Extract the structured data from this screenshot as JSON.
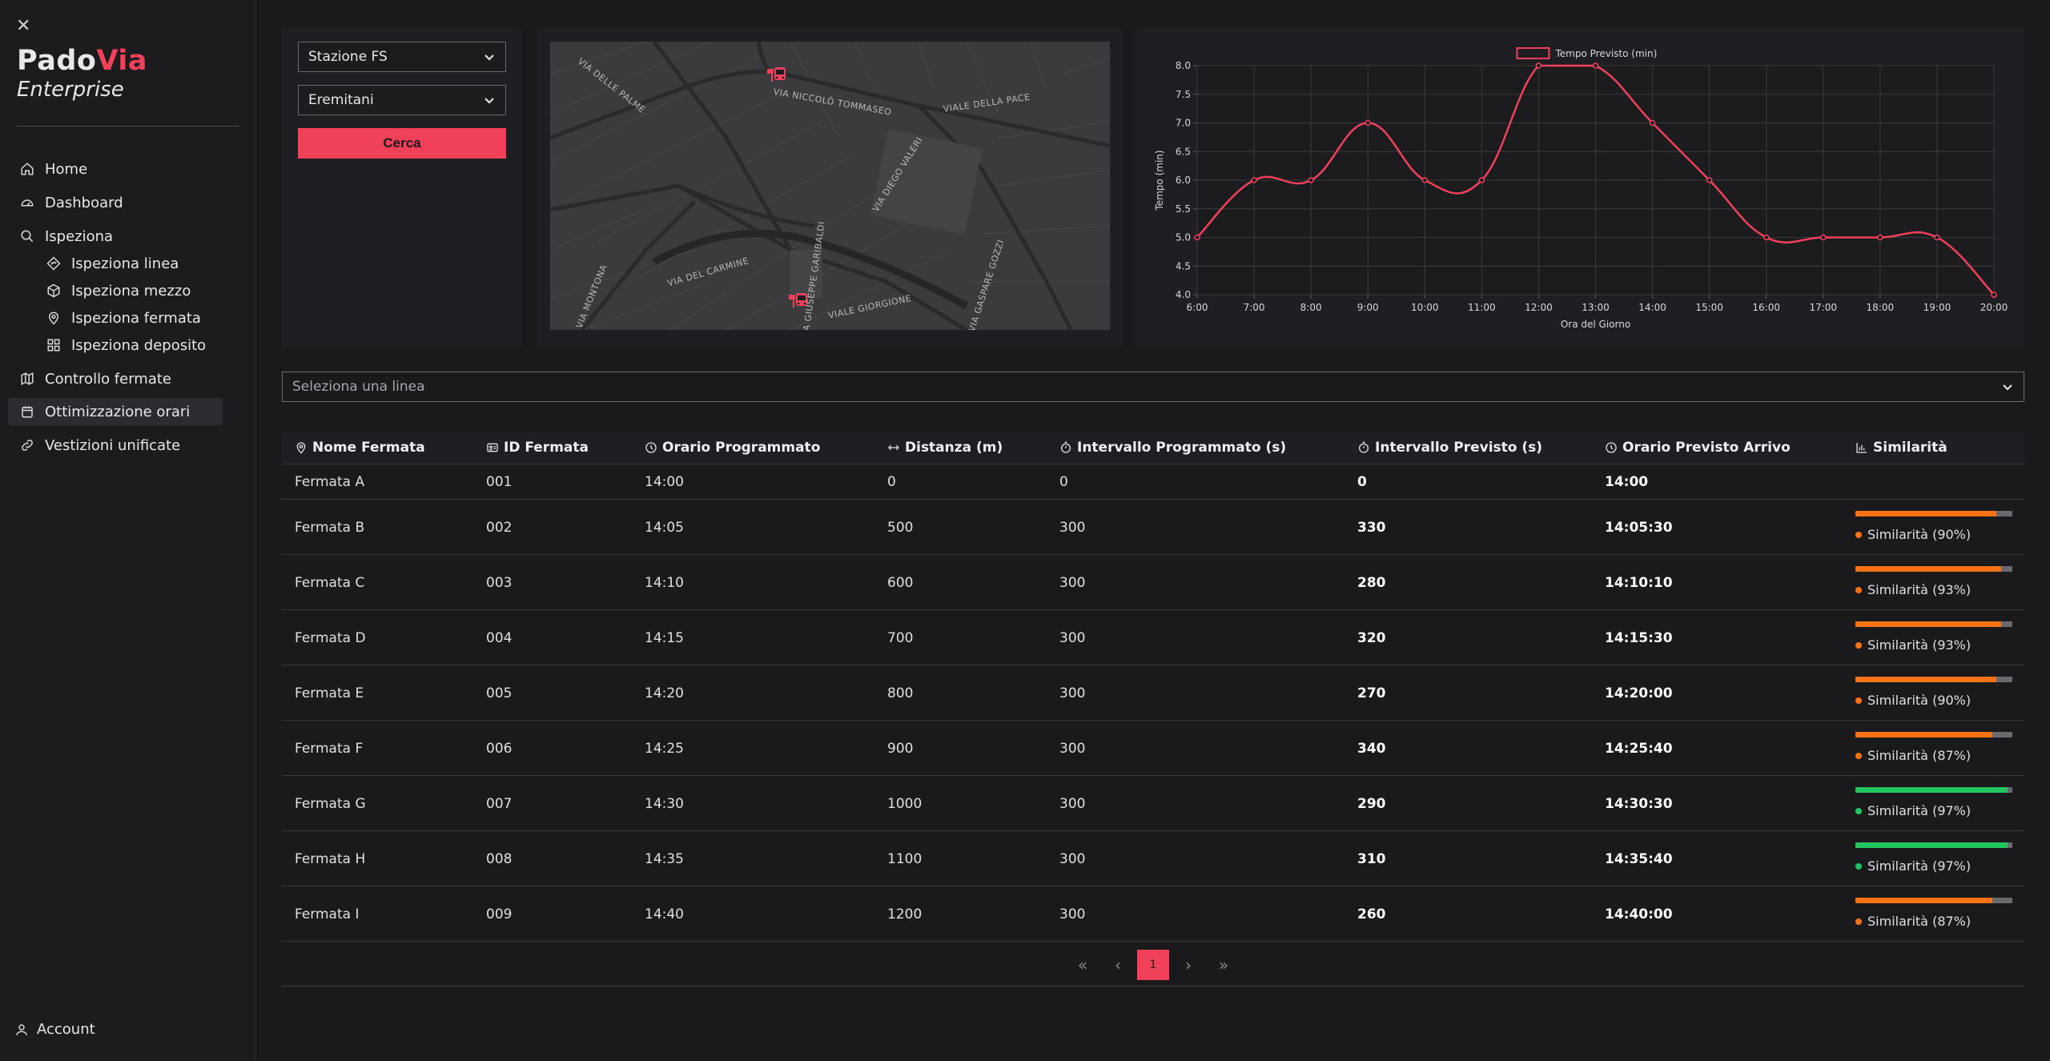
{
  "sidebar": {
    "brand_a": "Pado",
    "brand_b": "Via",
    "brand_sub": "Enterprise",
    "items": [
      {
        "label": "Home",
        "icon": "home-icon"
      },
      {
        "label": "Dashboard",
        "icon": "gauge-icon"
      },
      {
        "label": "Ispeziona",
        "icon": "search-icon"
      },
      {
        "label": "Ispeziona linea",
        "icon": "diamond-route-icon"
      },
      {
        "label": "Ispeziona mezzo",
        "icon": "box-icon"
      },
      {
        "label": "Ispeziona fermata",
        "icon": "map-pin-icon"
      },
      {
        "label": "Ispeziona deposito",
        "icon": "grid-icon"
      },
      {
        "label": "Controllo fermate",
        "icon": "map-icon"
      },
      {
        "label": "Ottimizzazione orari",
        "icon": "calendar-icon"
      },
      {
        "label": "Vestizioni unificate",
        "icon": "link-icon"
      }
    ],
    "account": "Account"
  },
  "search": {
    "from": "Stazione FS",
    "to": "Eremitani",
    "button": "Cerca"
  },
  "map": {
    "streets": [
      "VIA DELLE PALME",
      "VIA NICCOLÒ TOMMASEO",
      "VIALE DELLA PACE",
      "VIA DIEGO VALERI",
      "VIA DEL CARMINE",
      "VIA GIUSEPPE GARIBALDI",
      "VIA MONTONA",
      "VIALE GIORGIONE",
      "VIA GASPARE GOZZI"
    ]
  },
  "chart_data": {
    "type": "line",
    "x": [
      "6:00",
      "7:00",
      "8:00",
      "9:00",
      "10:00",
      "11:00",
      "12:00",
      "13:00",
      "14:00",
      "15:00",
      "16:00",
      "17:00",
      "18:00",
      "19:00",
      "20:00"
    ],
    "series": [
      {
        "name": "Tempo Previsto (min)",
        "values": [
          5.0,
          6.0,
          6.0,
          7.0,
          6.0,
          6.0,
          8.0,
          8.0,
          7.0,
          6.0,
          5.0,
          5.0,
          5.0,
          5.0,
          4.0
        ]
      }
    ],
    "xlabel": "Ora del Giorno",
    "ylabel": "Tempo (min)",
    "ylim": [
      4.0,
      8.0
    ],
    "yticks": [
      "8.0",
      "7.5",
      "7.0",
      "6.5",
      "6.0",
      "5.5",
      "5.0",
      "4.5",
      "4.0"
    ],
    "grid": true,
    "legend": "top-center",
    "color": "#f0405a"
  },
  "line_select": {
    "placeholder": "Seleziona una linea"
  },
  "table": {
    "headers": [
      "Nome Fermata",
      "ID Fermata",
      "Orario Programmato",
      "Distanza (m)",
      "Intervallo Programmato (s)",
      "Intervallo Previsto (s)",
      "Orario Previsto Arrivo",
      "Similarità"
    ],
    "rows": [
      {
        "name": "Fermata A",
        "id": "001",
        "time": "14:00",
        "dist": "0",
        "int_prog": "0",
        "int_prev": "0",
        "arrival": "14:00",
        "sim": null,
        "sim_label": ""
      },
      {
        "name": "Fermata B",
        "id": "002",
        "time": "14:05",
        "dist": "500",
        "int_prog": "300",
        "int_prev": "330",
        "arrival": "14:05:30",
        "sim": 0.9,
        "sim_label": "Similarità (90%)"
      },
      {
        "name": "Fermata C",
        "id": "003",
        "time": "14:10",
        "dist": "600",
        "int_prog": "300",
        "int_prev": "280",
        "arrival": "14:10:10",
        "sim": 0.93,
        "sim_label": "Similarità (93%)"
      },
      {
        "name": "Fermata D",
        "id": "004",
        "time": "14:15",
        "dist": "700",
        "int_prog": "300",
        "int_prev": "320",
        "arrival": "14:15:30",
        "sim": 0.93,
        "sim_label": "Similarità (93%)"
      },
      {
        "name": "Fermata E",
        "id": "005",
        "time": "14:20",
        "dist": "800",
        "int_prog": "300",
        "int_prev": "270",
        "arrival": "14:20:00",
        "sim": 0.9,
        "sim_label": "Similarità (90%)"
      },
      {
        "name": "Fermata F",
        "id": "006",
        "time": "14:25",
        "dist": "900",
        "int_prog": "300",
        "int_prev": "340",
        "arrival": "14:25:40",
        "sim": 0.87,
        "sim_label": "Similarità (87%)"
      },
      {
        "name": "Fermata G",
        "id": "007",
        "time": "14:30",
        "dist": "1000",
        "int_prog": "300",
        "int_prev": "290",
        "arrival": "14:30:30",
        "sim": 0.97,
        "sim_label": "Similarità (97%)"
      },
      {
        "name": "Fermata H",
        "id": "008",
        "time": "14:35",
        "dist": "1100",
        "int_prog": "300",
        "int_prev": "310",
        "arrival": "14:35:40",
        "sim": 0.97,
        "sim_label": "Similarità (97%)"
      },
      {
        "name": "Fermata I",
        "id": "009",
        "time": "14:40",
        "dist": "1200",
        "int_prog": "300",
        "int_prev": "260",
        "arrival": "14:40:00",
        "sim": 0.87,
        "sim_label": "Similarità (87%)"
      }
    ],
    "sim_colors": {
      "high": "#22c55e",
      "mid": "#f97316",
      "track": "#6a6a6e"
    }
  },
  "pagination": {
    "first": "«",
    "prev": "‹",
    "current": "1",
    "next": "›",
    "last": "»"
  }
}
